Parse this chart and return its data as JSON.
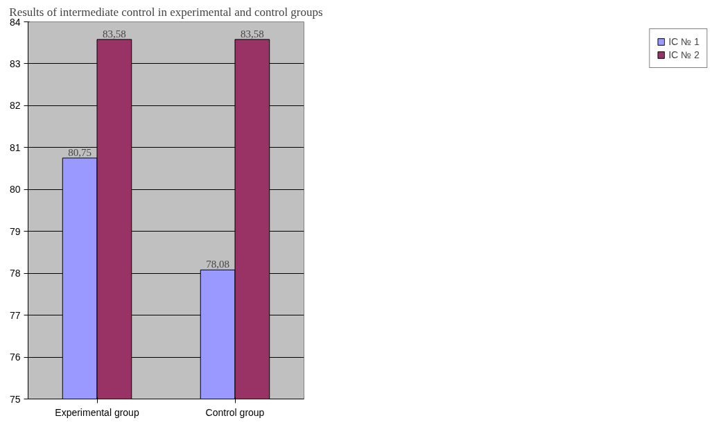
{
  "chart_data": {
    "type": "bar",
    "title": "Results of intermediate control in experimental and control groups",
    "categories": [
      "Experimental group",
      "Control group"
    ],
    "series": [
      {
        "name": "IC № 1",
        "color": "#9999ff",
        "values": [
          80.75,
          78.08
        ],
        "value_labels": [
          "80,75",
          "78,08"
        ]
      },
      {
        "name": "IC № 2",
        "color": "#993366",
        "values": [
          83.58,
          83.58
        ],
        "value_labels": [
          "83,58",
          "83,58"
        ]
      }
    ],
    "ylim": [
      75,
      84
    ],
    "yticks": [
      75,
      76,
      77,
      78,
      79,
      80,
      81,
      82,
      83,
      84
    ],
    "grid": "y",
    "legend": "right"
  }
}
